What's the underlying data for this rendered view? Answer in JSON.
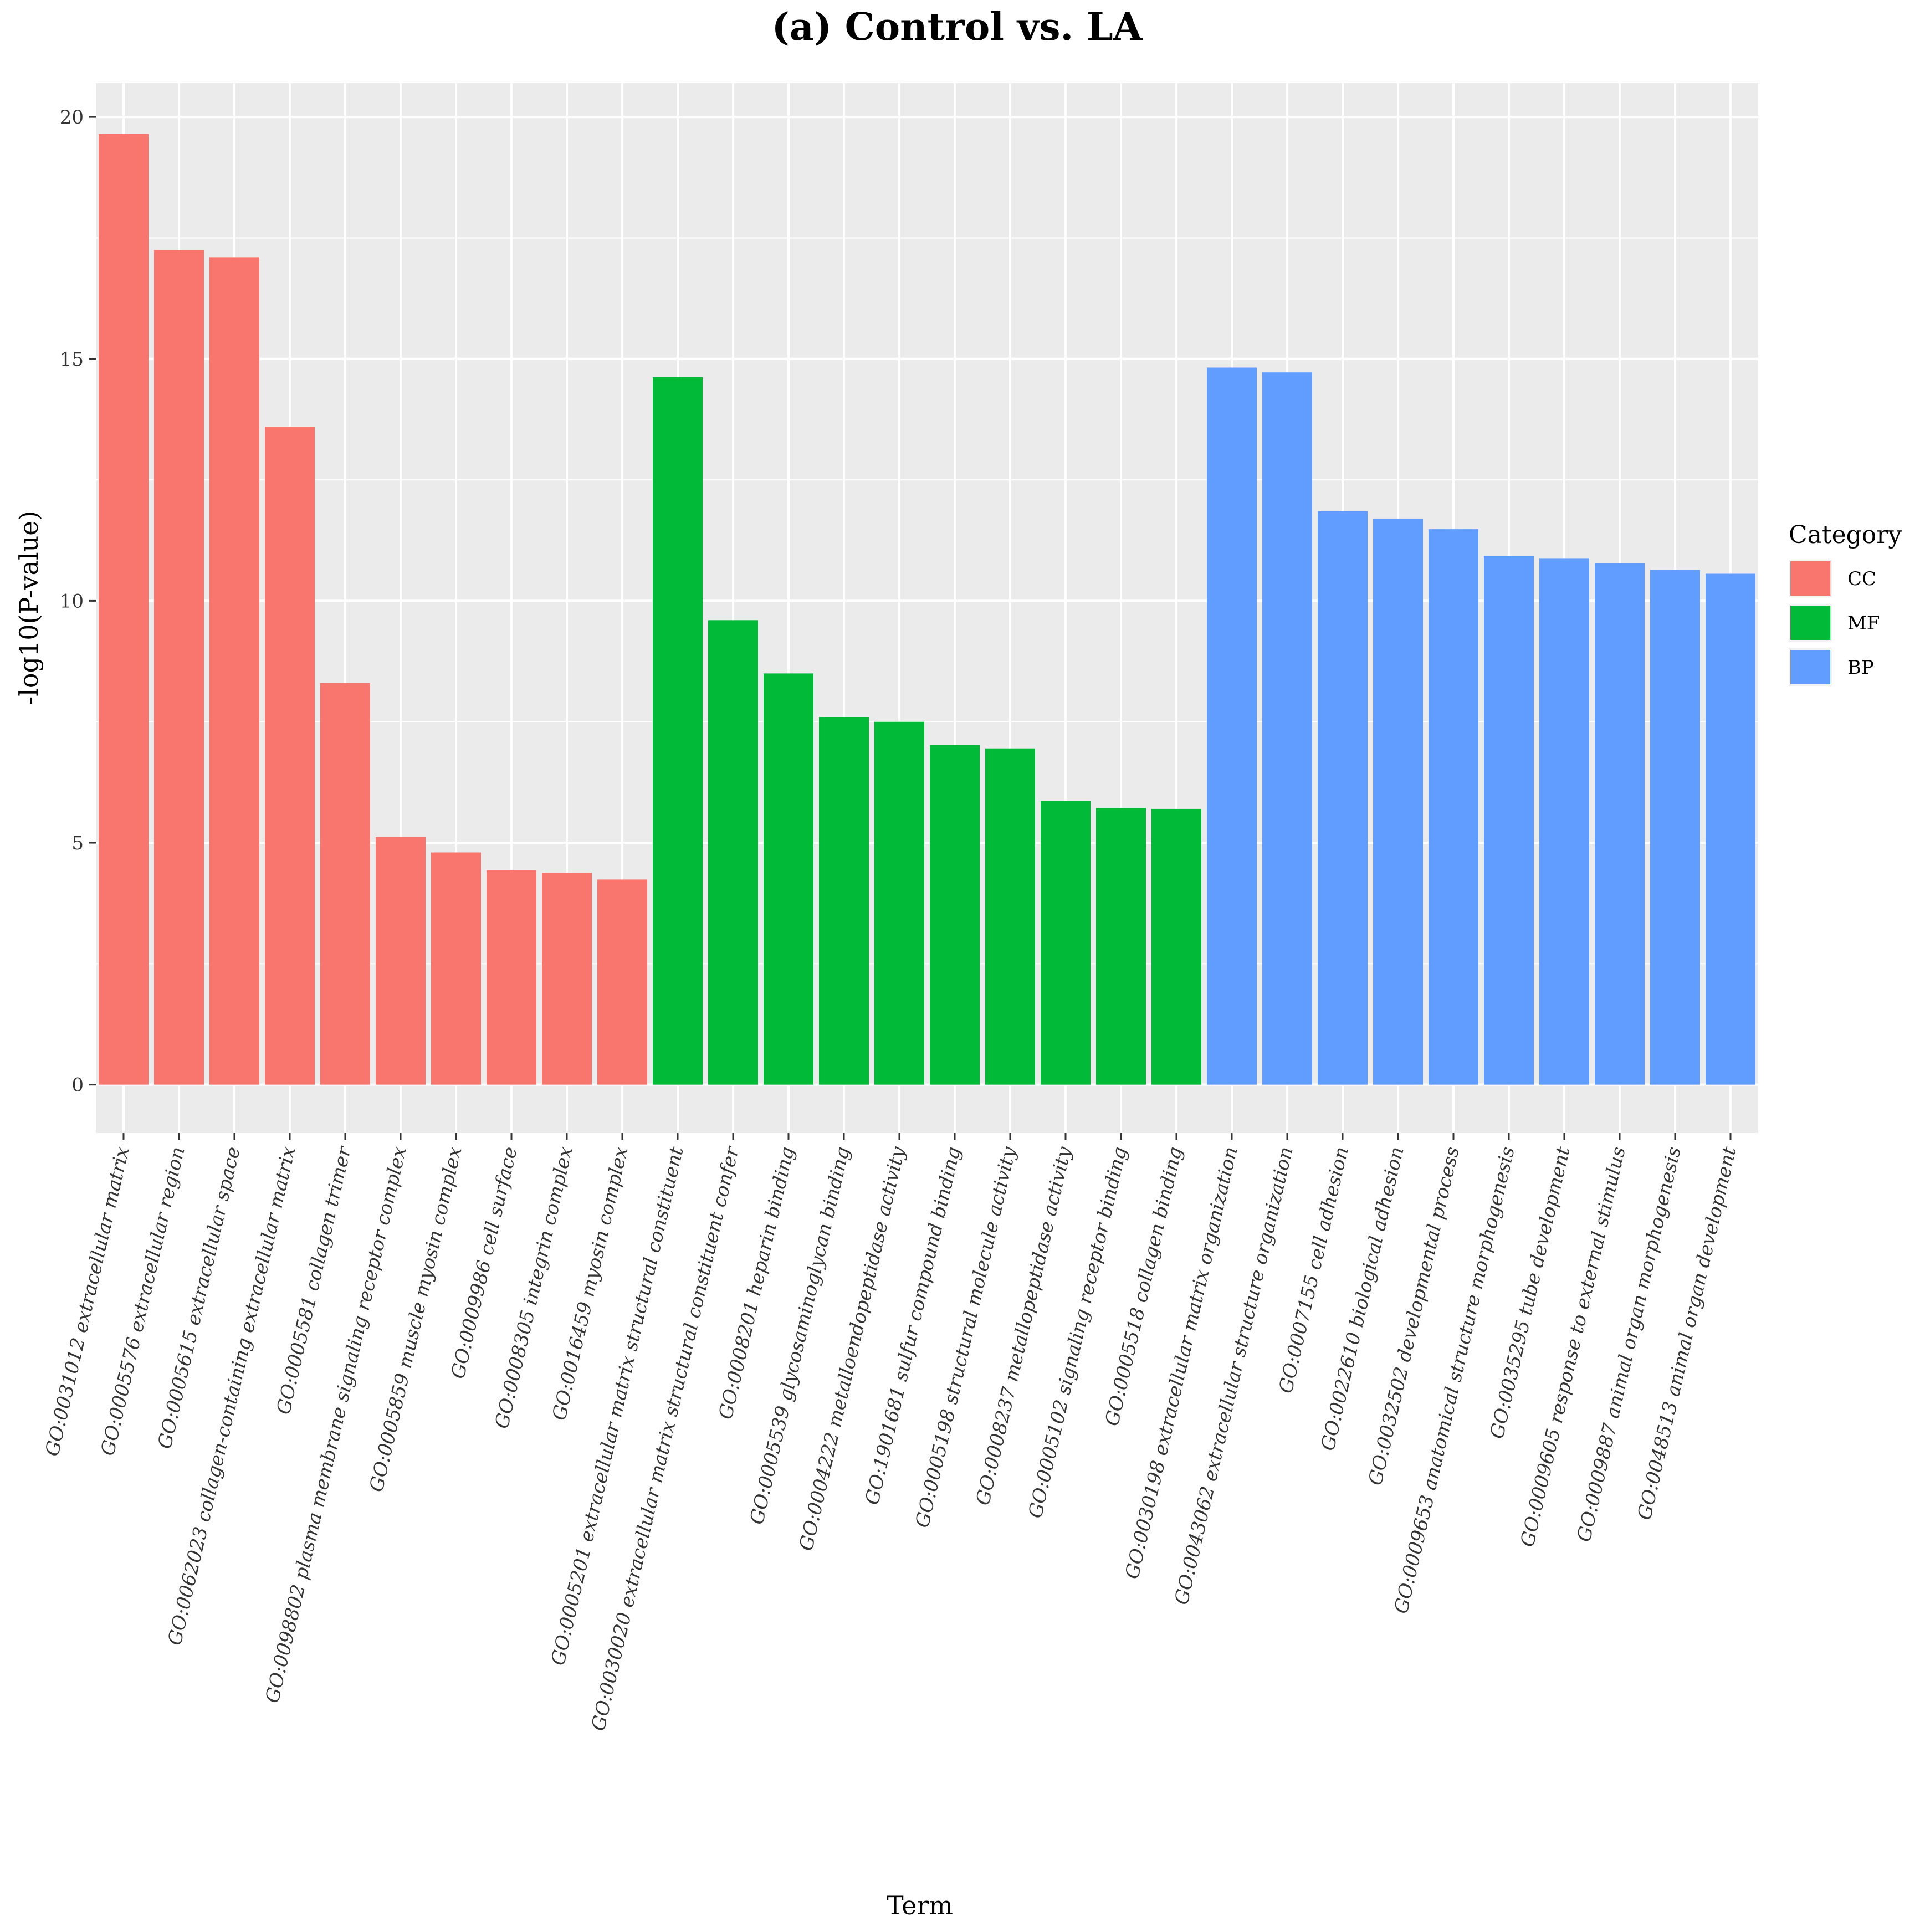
{
  "chart_data": {
    "type": "bar",
    "title": "(a) Control vs. LA",
    "xlabel": "Term",
    "ylabel": "-log10(P-value)",
    "ylim": [
      -1,
      20.7
    ],
    "yticks": [
      0,
      5,
      10,
      15,
      20
    ],
    "grid": true,
    "legend": {
      "title": "Category",
      "position": "right",
      "entries": [
        {
          "name": "CC",
          "color": "#F8766D"
        },
        {
          "name": "MF",
          "color": "#00BA38"
        },
        {
          "name": "BP",
          "color": "#619CFF"
        }
      ]
    },
    "categories": [
      "GO:0031012 extracellular matrix",
      "GO:0005576 extracellular region",
      "GO:0005615 extracellular space",
      "GO:0062023 collagen-containing extracellular matrix",
      "GO:0005581 collagen trimer",
      "GO:0098802 plasma membrane signaling receptor complex",
      "GO:0005859 muscle myosin complex",
      "GO:0009986 cell surface",
      "GO:0008305 integrin complex",
      "GO:0016459 myosin complex",
      "GO:0005201 extracellular matrix structural constituent",
      "GO:0030020 extracellular matrix structural constituent confer",
      "GO:0008201 heparin binding",
      "GO:0005539 glycosaminoglycan binding",
      "GO:0004222 metalloendopeptidase activity",
      "GO:1901681 sulfur compound binding",
      "GO:0005198 structural molecule activity",
      "GO:0008237 metallopeptidase activity",
      "GO:0005102 signaling receptor binding",
      "GO:0005518 collagen binding",
      "GO:0030198 extracellular matrix organization",
      "GO:0043062 extracellular structure organization",
      "GO:0007155 cell adhesion",
      "GO:0022610 biological adhesion",
      "GO:0032502 developmental process",
      "GO:0009653 anatomical structure morphogenesis",
      "GO:0035295 tube development",
      "GO:0009605 response to external stimulus",
      "GO:0009887 animal organ morphogenesis",
      "GO:0048513 animal organ development"
    ],
    "values": [
      19.65,
      17.25,
      17.1,
      13.6,
      8.3,
      5.12,
      4.8,
      4.43,
      4.38,
      4.24,
      14.62,
      9.6,
      8.5,
      7.6,
      7.5,
      7.02,
      6.95,
      5.87,
      5.72,
      5.7,
      14.82,
      14.72,
      11.85,
      11.7,
      11.48,
      10.93,
      10.87,
      10.78,
      10.64,
      10.56
    ],
    "series_category": [
      "CC",
      "CC",
      "CC",
      "CC",
      "CC",
      "CC",
      "CC",
      "CC",
      "CC",
      "CC",
      "MF",
      "MF",
      "MF",
      "MF",
      "MF",
      "MF",
      "MF",
      "MF",
      "MF",
      "MF",
      "BP",
      "BP",
      "BP",
      "BP",
      "BP",
      "BP",
      "BP",
      "BP",
      "BP",
      "BP"
    ]
  }
}
